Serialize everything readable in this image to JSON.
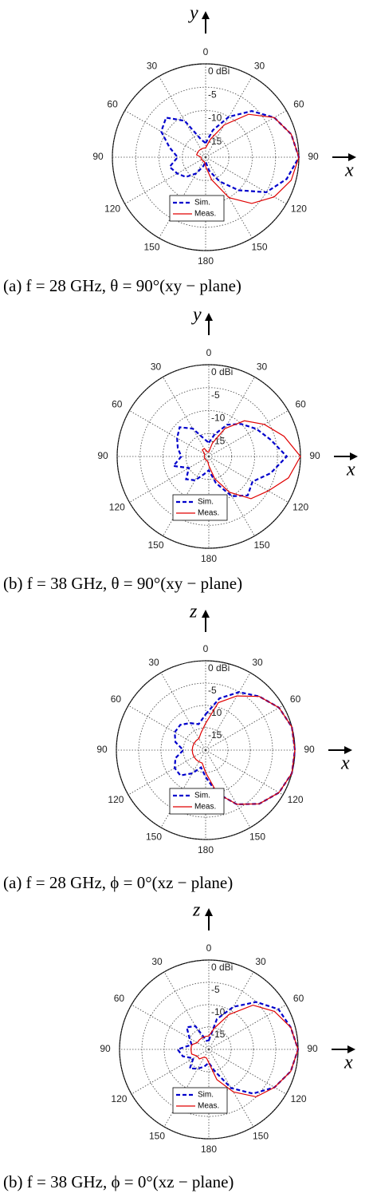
{
  "chart_data": [
    {
      "type": "polar",
      "caption": "(a) f = 28 GHz, θ = 90°(xy − plane)",
      "y_axis_label": "y",
      "x_axis_label": "x",
      "x": [
        0,
        15,
        30,
        45,
        60,
        75,
        90,
        105,
        120,
        135,
        150,
        165,
        180,
        195,
        210,
        225,
        240,
        255,
        270,
        285,
        300,
        315,
        330,
        345
      ],
      "xticks": [
        0,
        30,
        60,
        90,
        120,
        150,
        180,
        {
          "value": 210,
          "label": "150"
        },
        {
          "value": 240,
          "label": "120"
        },
        {
          "value": 270,
          "label": "90"
        },
        {
          "value": 300,
          "label": "60"
        },
        {
          "value": 330,
          "label": "30"
        }
      ],
      "ylim": [
        -20,
        0
      ],
      "yticks": [
        {
          "value": 0,
          "label": "0 dBi"
        },
        -5,
        -10,
        -15
      ],
      "series": [
        {
          "name": "Sim.",
          "color": "#0000cc",
          "dash": true,
          "values": [
            -17,
            -14,
            -10,
            -6,
            -3,
            -1,
            0,
            -2,
            -5,
            -10,
            -14,
            -17,
            -19,
            -18,
            -16,
            -14,
            -13,
            -12,
            -14,
            -12,
            -9,
            -8,
            -11,
            -16
          ]
        },
        {
          "name": "Meas.",
          "color": "#e00000",
          "dash": false,
          "values": [
            -18,
            -16,
            -12,
            -7,
            -3,
            -1,
            0,
            -1,
            -3,
            -6,
            -10,
            -15,
            -18,
            -19,
            -19,
            -19,
            -19,
            -19,
            -19,
            -18,
            -18,
            -18,
            -18,
            -18
          ]
        }
      ]
    },
    {
      "type": "polar",
      "caption": "(b) f = 38 GHz, θ = 90°(xy − plane)",
      "y_axis_label": "y",
      "x_axis_label": "x",
      "x": [
        0,
        15,
        30,
        45,
        60,
        75,
        90,
        105,
        120,
        135,
        150,
        165,
        180,
        195,
        210,
        225,
        240,
        255,
        270,
        285,
        300,
        315,
        330,
        345
      ],
      "xticks": [
        0,
        30,
        60,
        90,
        120,
        150,
        180,
        {
          "value": 210,
          "label": "150"
        },
        {
          "value": 240,
          "label": "120"
        },
        {
          "value": 270,
          "label": "90"
        },
        {
          "value": 300,
          "label": "60"
        },
        {
          "value": 330,
          "label": "30"
        }
      ],
      "ylim": [
        -20,
        0
      ],
      "yticks": [
        {
          "value": 0,
          "label": "0 dBi"
        },
        -5,
        -10,
        -15
      ],
      "series": [
        {
          "name": "Sim.",
          "color": "#0000cc",
          "dash": true,
          "values": [
            -17,
            -15,
            -12,
            -10,
            -8,
            -6,
            -3,
            -6,
            -9,
            -8,
            -10,
            -14,
            -17,
            -16,
            -14,
            -13,
            -15,
            -12,
            -14,
            -13,
            -12,
            -11,
            -13,
            -16
          ]
        },
        {
          "name": "Meas.",
          "color": "#e00000",
          "dash": false,
          "values": [
            -19,
            -17,
            -13,
            -9,
            -6,
            -3,
            0,
            -2,
            -5,
            -7,
            -11,
            -15,
            -18,
            -19,
            -19,
            -19,
            -19,
            -19,
            -19,
            -19,
            -19,
            -18,
            -18,
            -19
          ]
        }
      ]
    },
    {
      "type": "polar",
      "caption": "(a) f = 28 GHz, ϕ = 0°(xz − plane)",
      "y_axis_label": "z",
      "x_axis_label": "x",
      "x": [
        0,
        15,
        30,
        45,
        60,
        75,
        90,
        105,
        120,
        135,
        150,
        165,
        180,
        195,
        210,
        225,
        240,
        255,
        270,
        285,
        300,
        315,
        330,
        345
      ],
      "xticks": [
        0,
        30,
        60,
        90,
        120,
        150,
        180,
        {
          "value": 210,
          "label": "150"
        },
        {
          "value": 240,
          "label": "120"
        },
        {
          "value": 270,
          "label": "90"
        },
        {
          "value": 300,
          "label": "60"
        },
        {
          "value": 330,
          "label": "30"
        }
      ],
      "ylim": [
        -20,
        0
      ],
      "yticks": [
        {
          "value": 0,
          "label": "0 dBi"
        },
        -5,
        -10,
        -15
      ],
      "series": [
        {
          "name": "Sim.",
          "color": "#0000cc",
          "dash": true,
          "values": [
            -12,
            -8,
            -5,
            -3,
            -1,
            0,
            0,
            0,
            -1,
            -3,
            -6,
            -10,
            -14,
            -16,
            -14,
            -12,
            -12,
            -13,
            -15,
            -13,
            -12,
            -12,
            -13,
            -14
          ]
        },
        {
          "name": "Meas.",
          "color": "#e00000",
          "dash": false,
          "values": [
            -14,
            -9,
            -6,
            -3,
            -1,
            0,
            0,
            0,
            -1,
            -3,
            -6,
            -10,
            -15,
            -17,
            -17,
            -17,
            -17,
            -17,
            -17,
            -17,
            -17,
            -17,
            -17,
            -16
          ]
        }
      ]
    },
    {
      "type": "polar",
      "caption": "(b) f = 38 GHz, ϕ = 0°(xz − plane)",
      "y_axis_label": "z",
      "x_axis_label": "x",
      "x": [
        0,
        15,
        30,
        45,
        60,
        75,
        90,
        105,
        120,
        135,
        150,
        165,
        180,
        195,
        210,
        225,
        240,
        255,
        270,
        285,
        300,
        315,
        330,
        345
      ],
      "xticks": [
        0,
        30,
        60,
        90,
        120,
        150,
        180,
        {
          "value": 210,
          "label": "150"
        },
        {
          "value": 240,
          "label": "120"
        },
        {
          "value": 270,
          "label": "90"
        },
        {
          "value": 300,
          "label": "60"
        },
        {
          "value": 330,
          "label": "30"
        }
      ],
      "ylim": [
        -20,
        0
      ],
      "yticks": [
        {
          "value": 0,
          "label": "0 dBi"
        },
        -5,
        -10,
        -15
      ],
      "series": [
        {
          "name": "Sim.",
          "color": "#0000cc",
          "dash": true,
          "values": [
            -18,
            -13,
            -9,
            -5,
            -2,
            -1,
            0,
            -1,
            -3,
            -6,
            -10,
            -15,
            -17,
            -16,
            -15,
            -14,
            -16,
            -14,
            -13,
            -16,
            -15,
            -13,
            -14,
            -18
          ]
        },
        {
          "name": "Meas.",
          "color": "#e00000",
          "dash": false,
          "values": [
            -17,
            -15,
            -11,
            -6,
            -3,
            -1,
            0,
            -1,
            -3,
            -5,
            -9,
            -13,
            -17,
            -18,
            -18,
            -17,
            -17,
            -16,
            -16,
            -16,
            -17,
            -17,
            -17,
            -17
          ]
        }
      ]
    }
  ]
}
